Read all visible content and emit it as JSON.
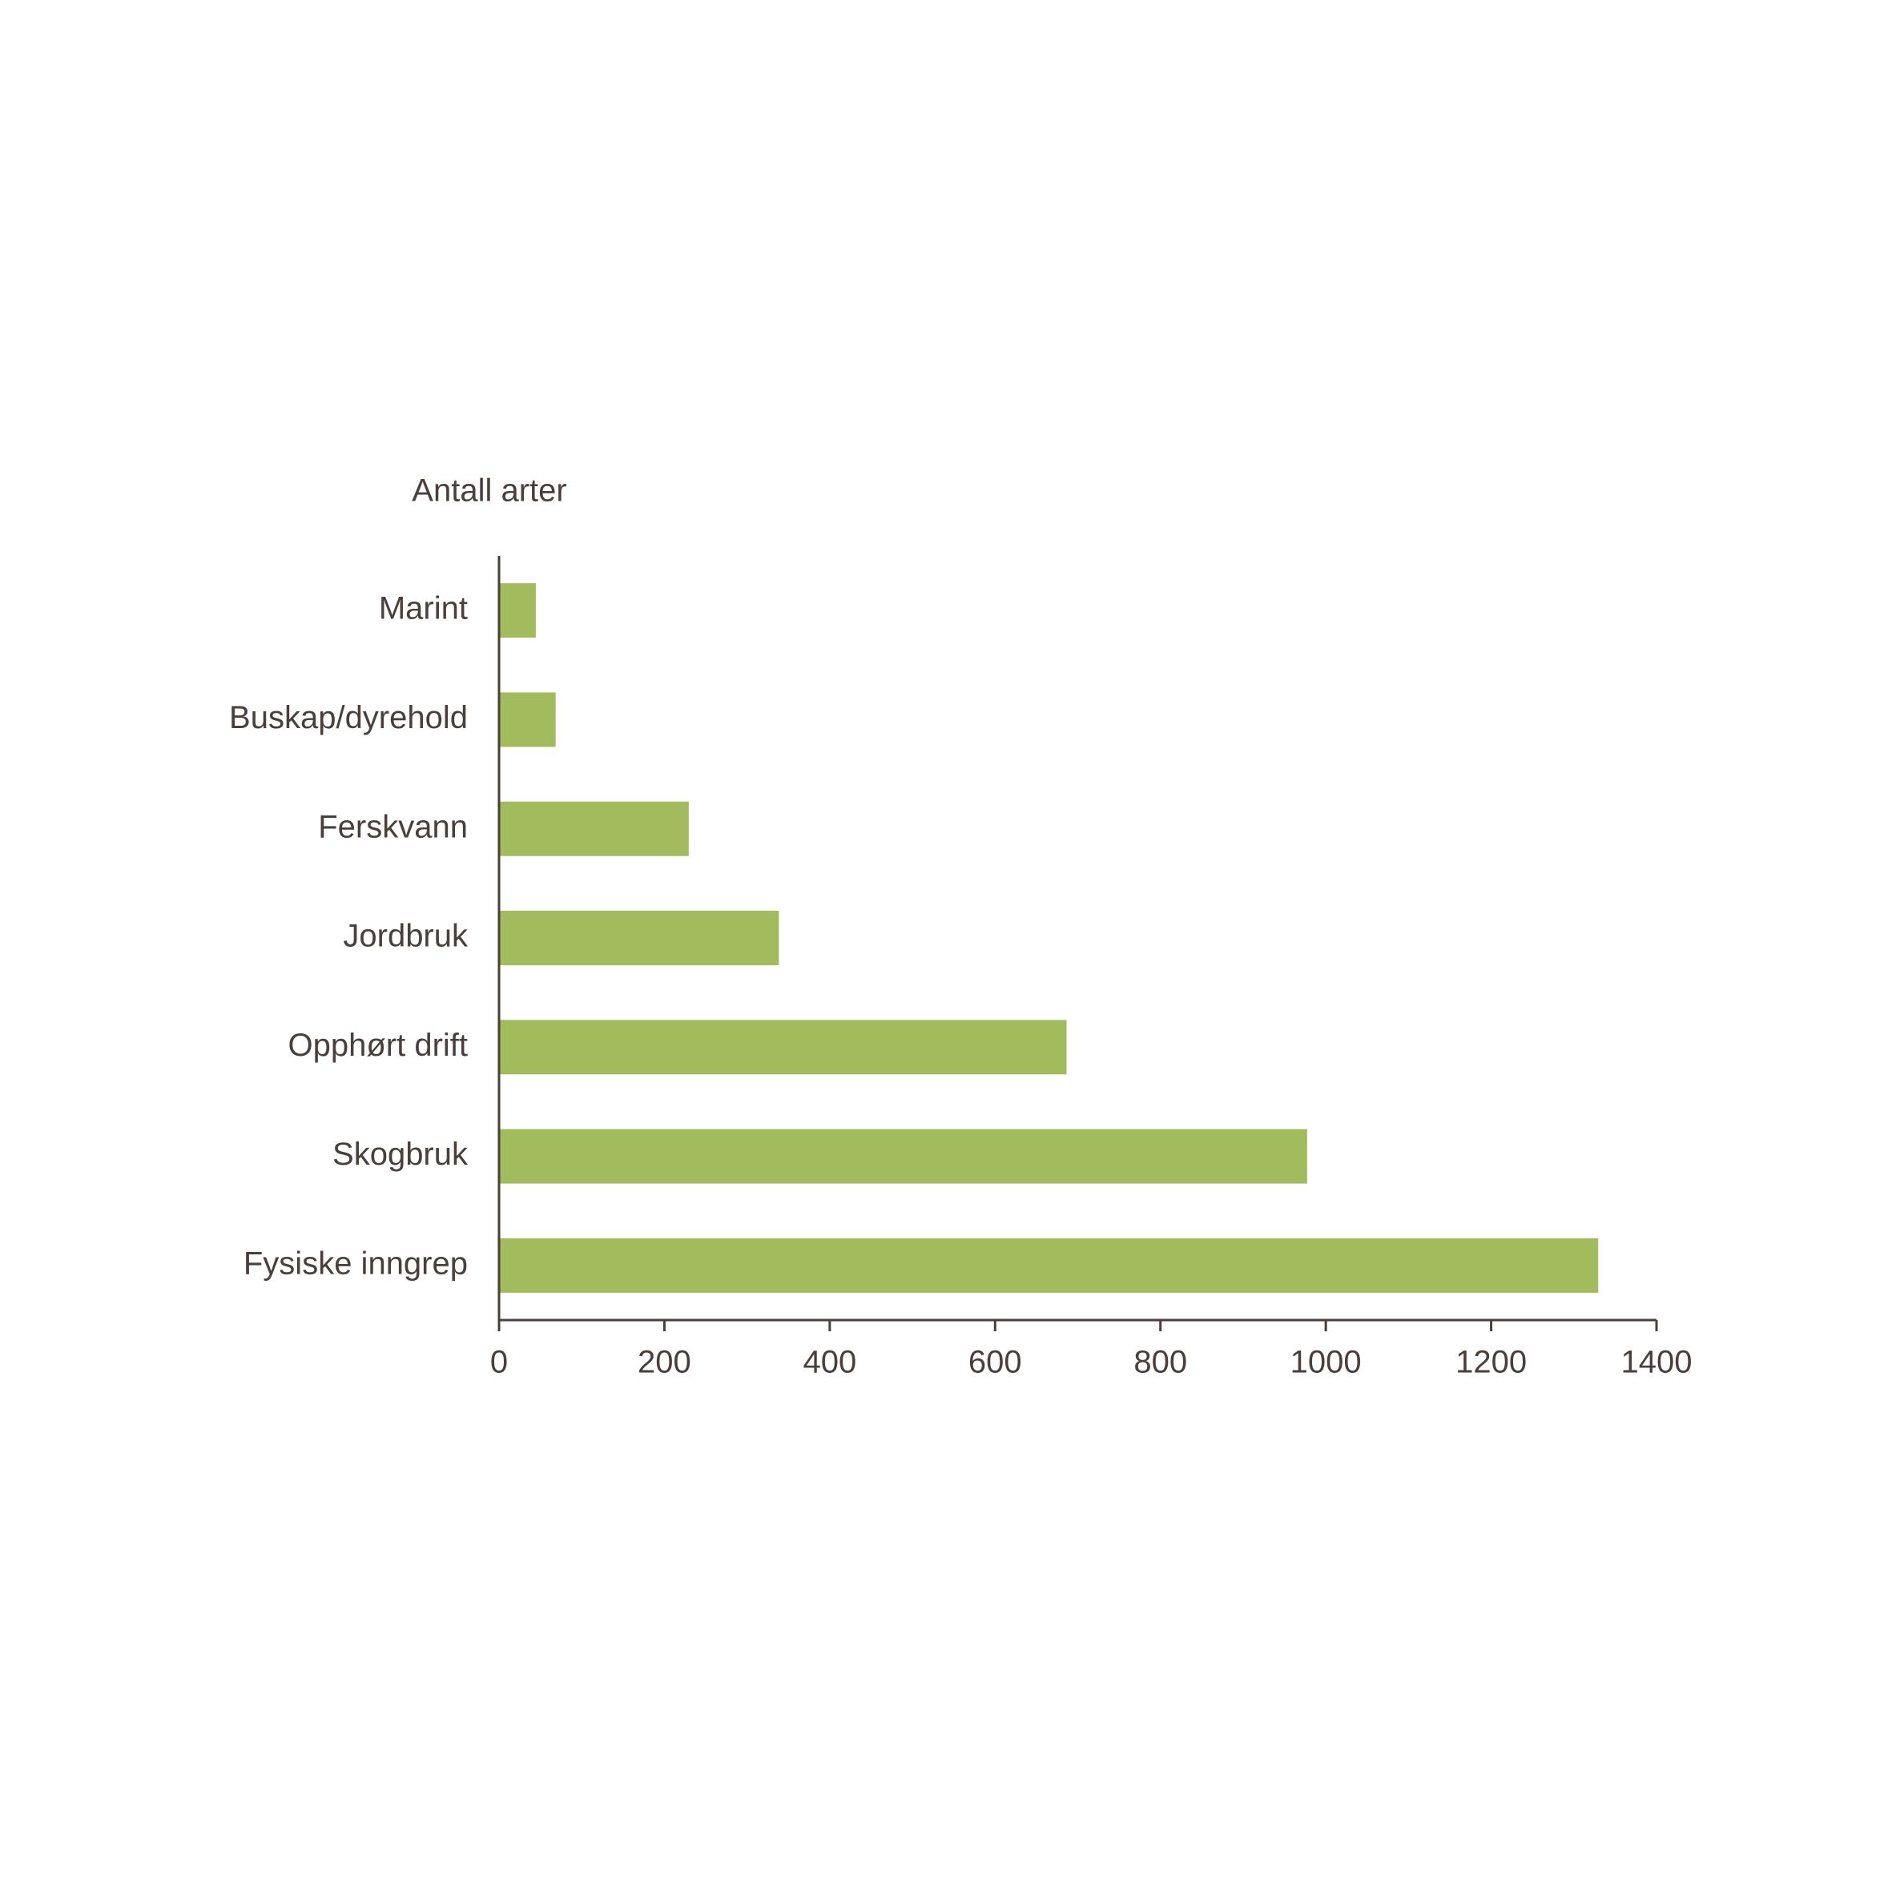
{
  "chart_data": {
    "type": "hbar",
    "axis_label": "Antall arter",
    "categories": [
      "Marint",
      "Buskap/dyrehold",
      "Ferskvann",
      "Jordbruk",
      "Opphørt drift",
      "Skogbruk",
      "Fysiske inngrep"
    ],
    "values": [
      43,
      67,
      228,
      337,
      685,
      976,
      1328
    ],
    "color": "#a2bb5c",
    "xlim": [
      0,
      1400
    ],
    "xticks": [
      0,
      200,
      400,
      600,
      800,
      1000,
      1200,
      1400
    ],
    "grid": false
  }
}
